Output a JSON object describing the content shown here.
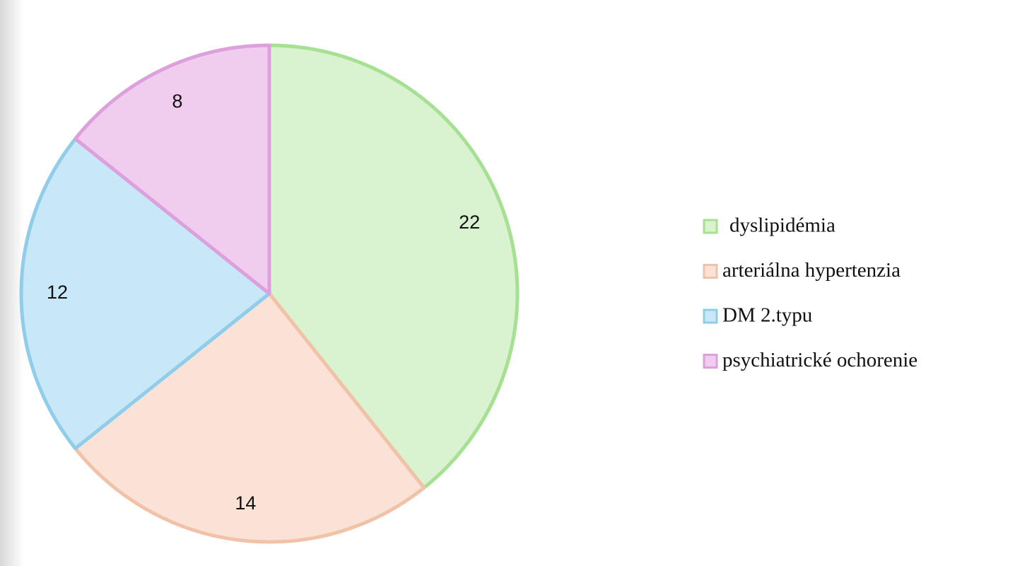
{
  "chart_data": {
    "type": "pie",
    "categories": [
      "dyslipidémia",
      "arteriálna hypertenzia",
      "DM 2.typu",
      "psychiatrické ochorenie"
    ],
    "values": [
      22,
      14,
      12,
      8
    ],
    "colors": [
      "#d9f2cf",
      "#fae3d6",
      "#c8e7f7",
      "#f0cdef"
    ],
    "edge_colors": [
      "#a6e092",
      "#f2c2a8",
      "#8fcdea",
      "#dda0dc"
    ],
    "legend": "right"
  }
}
